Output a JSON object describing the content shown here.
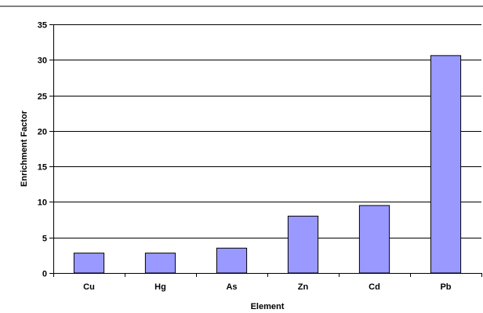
{
  "chart_data": {
    "type": "bar",
    "title": "",
    "xlabel": "Element",
    "ylabel": "Enrichment Factor",
    "categories": [
      "Cu",
      "Hg",
      "As",
      "Zn",
      "Cd",
      "Pb"
    ],
    "values": [
      2.8,
      2.8,
      3.5,
      8.0,
      9.5,
      30.6
    ],
    "ylim": [
      0,
      35
    ],
    "yticks": [
      0,
      5,
      10,
      15,
      20,
      25,
      30,
      35
    ],
    "grid": true,
    "legend": "none",
    "colors": {
      "bar_fill": "#9999ff",
      "bar_stroke": "#000000",
      "grid": "#000000",
      "axis": "#000000"
    }
  }
}
